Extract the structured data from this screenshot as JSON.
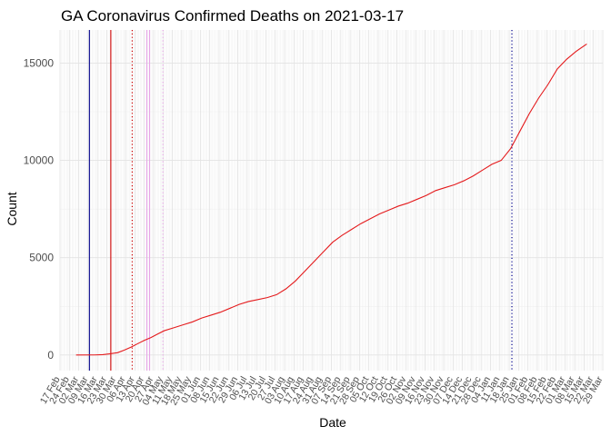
{
  "chart_data": {
    "type": "line",
    "title": "GA Coronavirus Confirmed Deaths on 2021-03-17",
    "xlabel": "Date",
    "ylabel": "Count",
    "x_range": [
      "2020-02-17",
      "2021-03-29"
    ],
    "ylim": [
      -800,
      16700
    ],
    "y_ticks": [
      0,
      5000,
      10000,
      15000
    ],
    "x_tick_labels": [
      "17 Feb",
      "24 Feb",
      "02 Mar",
      "09 Mar",
      "16 Mar",
      "23 Mar",
      "30 Mar",
      "06 Apr",
      "13 Apr",
      "20 Apr",
      "27 Apr",
      "04 May",
      "11 May",
      "18 May",
      "25 May",
      "01 Jun",
      "08 Jun",
      "15 Jun",
      "22 Jun",
      "29 Jun",
      "06 Jul",
      "13 Jul",
      "20 Jul",
      "27 Jul",
      "03 Aug",
      "10 Aug",
      "17 Aug",
      "24 Aug",
      "31 Aug",
      "07 Sep",
      "14 Sep",
      "21 Sep",
      "28 Sep",
      "05 Oct",
      "12 Oct",
      "19 Oct",
      "26 Oct",
      "02 Nov",
      "09 Nov",
      "16 Nov",
      "23 Nov",
      "30 Nov",
      "07 Dec",
      "14 Dec",
      "21 Dec",
      "28 Dec",
      "04 Jan",
      "11 Jan",
      "18 Jan",
      "25 Jan",
      "01 Feb",
      "08 Feb",
      "15 Feb",
      "22 Feb",
      "01 Mar",
      "08 Mar",
      "15 Mar",
      "22 Mar",
      "29 Mar"
    ],
    "grid": true,
    "series": [
      {
        "color": "#e41a1c",
        "points": [
          [
            "2020-02-29",
            0
          ],
          [
            "2020-03-14",
            5
          ],
          [
            "2020-03-20",
            20
          ],
          [
            "2020-03-25",
            60
          ],
          [
            "2020-03-31",
            120
          ],
          [
            "2020-04-05",
            250
          ],
          [
            "2020-04-10",
            400
          ],
          [
            "2020-04-15",
            580
          ],
          [
            "2020-04-20",
            750
          ],
          [
            "2020-04-25",
            900
          ],
          [
            "2020-04-30",
            1080
          ],
          [
            "2020-05-05",
            1250
          ],
          [
            "2020-05-12",
            1400
          ],
          [
            "2020-05-19",
            1550
          ],
          [
            "2020-05-26",
            1700
          ],
          [
            "2020-06-02",
            1900
          ],
          [
            "2020-06-09",
            2050
          ],
          [
            "2020-06-16",
            2200
          ],
          [
            "2020-06-23",
            2400
          ],
          [
            "2020-06-30",
            2600
          ],
          [
            "2020-07-07",
            2750
          ],
          [
            "2020-07-14",
            2850
          ],
          [
            "2020-07-21",
            2950
          ],
          [
            "2020-07-28",
            3100
          ],
          [
            "2020-08-04",
            3400
          ],
          [
            "2020-08-11",
            3800
          ],
          [
            "2020-08-18",
            4300
          ],
          [
            "2020-08-25",
            4800
          ],
          [
            "2020-09-01",
            5300
          ],
          [
            "2020-09-08",
            5800
          ],
          [
            "2020-09-15",
            6150
          ],
          [
            "2020-09-22",
            6450
          ],
          [
            "2020-09-29",
            6750
          ],
          [
            "2020-10-06",
            7000
          ],
          [
            "2020-10-13",
            7250
          ],
          [
            "2020-10-20",
            7450
          ],
          [
            "2020-10-27",
            7650
          ],
          [
            "2020-11-03",
            7800
          ],
          [
            "2020-11-10",
            8000
          ],
          [
            "2020-11-17",
            8200
          ],
          [
            "2020-11-24",
            8450
          ],
          [
            "2020-12-01",
            8600
          ],
          [
            "2020-12-08",
            8750
          ],
          [
            "2020-12-15",
            8950
          ],
          [
            "2020-12-22",
            9200
          ],
          [
            "2020-12-29",
            9500
          ],
          [
            "2021-01-05",
            9800
          ],
          [
            "2021-01-12",
            10000
          ],
          [
            "2021-01-19",
            10600
          ],
          [
            "2021-01-26",
            11500
          ],
          [
            "2021-02-02",
            12400
          ],
          [
            "2021-02-09",
            13200
          ],
          [
            "2021-02-16",
            13900
          ],
          [
            "2021-02-23",
            14700
          ],
          [
            "2021-03-02",
            15200
          ],
          [
            "2021-03-09",
            15600
          ],
          [
            "2021-03-17",
            15980
          ]
        ]
      }
    ],
    "vertical_lines": [
      {
        "date": "2020-03-10",
        "color": "#00008b",
        "style": "solid"
      },
      {
        "date": "2020-03-26",
        "color": "#cc0000",
        "style": "solid"
      },
      {
        "date": "2020-04-11",
        "color": "#cc0000",
        "style": "dotted"
      },
      {
        "date": "2020-04-22",
        "color": "#e6a5e6",
        "style": "solid"
      },
      {
        "date": "2020-04-24",
        "color": "#e6a5e6",
        "style": "solid"
      },
      {
        "date": "2020-05-04",
        "color": "#e6a5e6",
        "style": "dotted"
      },
      {
        "date": "2021-01-20",
        "color": "#00008b",
        "style": "dotted"
      }
    ]
  }
}
